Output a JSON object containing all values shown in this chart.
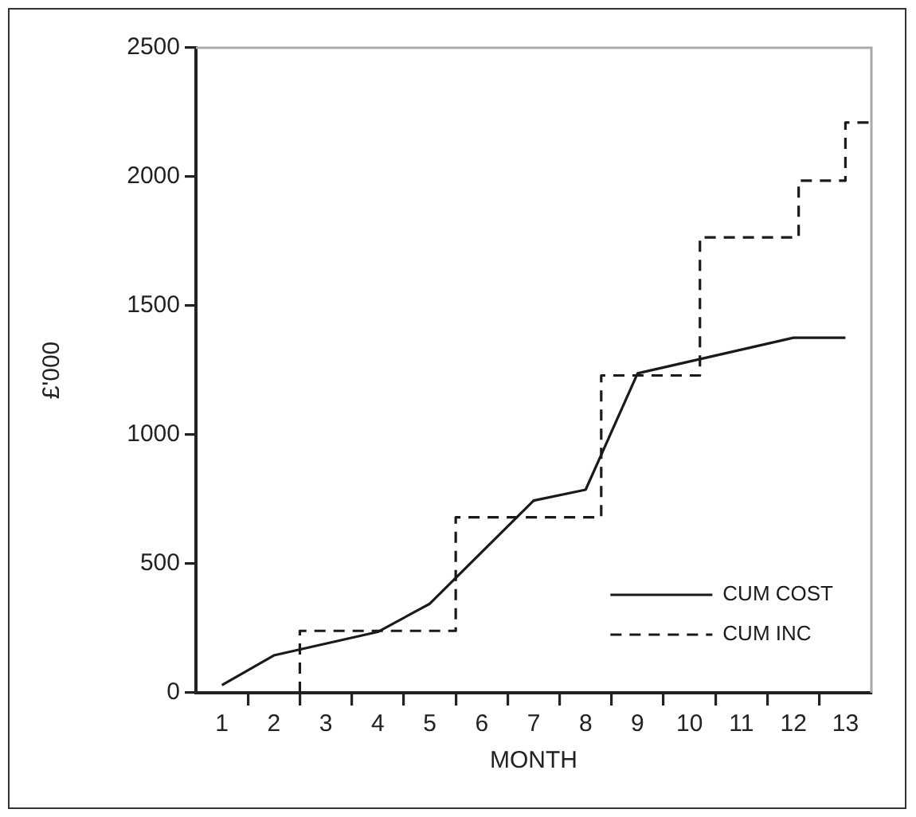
{
  "chart_data": {
    "type": "line",
    "xlabel": "MONTH",
    "ylabel": "£'000",
    "xlim": [
      0.5,
      13.5
    ],
    "xticks": [
      1,
      {
        "value": 1.5,
        "label": null
      },
      2,
      {
        "value": 2.5,
        "label": null
      },
      3,
      {
        "value": 3.5,
        "label": null
      },
      4,
      {
        "value": 4.5,
        "label": null
      },
      5,
      {
        "value": 5.5,
        "label": null
      },
      6,
      {
        "value": 6.5,
        "label": null
      },
      7,
      {
        "value": 7.5,
        "label": null
      },
      8,
      {
        "value": 8.5,
        "label": null
      },
      9,
      {
        "value": 9.5,
        "label": null
      },
      10,
      {
        "value": 10.5,
        "label": null
      },
      11,
      {
        "value": 11.5,
        "label": null
      },
      12,
      {
        "value": 12.5,
        "label": null
      },
      13
    ],
    "ylim": [
      0,
      2500
    ],
    "yticks": [
      0,
      500,
      1000,
      1500,
      2000,
      2500
    ],
    "grid": false,
    "legend": "bottom right",
    "marker": "none",
    "series": [
      {
        "name": "CUM COST",
        "type": "line",
        "color": "#1a1a1a",
        "line_style": "solid",
        "x": [
          1,
          2,
          4,
          5,
          7,
          8,
          9,
          12,
          13
        ],
        "values": [
          30,
          145,
          236,
          345,
          745,
          787,
          1238,
          1376,
          1376
        ]
      },
      {
        "name": "CUM INC",
        "type": "step",
        "color": "#1a1a1a",
        "line_style": "dashed",
        "x": [
          2.5,
          5.5,
          8.3,
          10.2,
          12.1,
          13,
          13.5
        ],
        "values": [
          0,
          240,
          680,
          1230,
          1765,
          1985,
          2210
        ]
      }
    ]
  }
}
